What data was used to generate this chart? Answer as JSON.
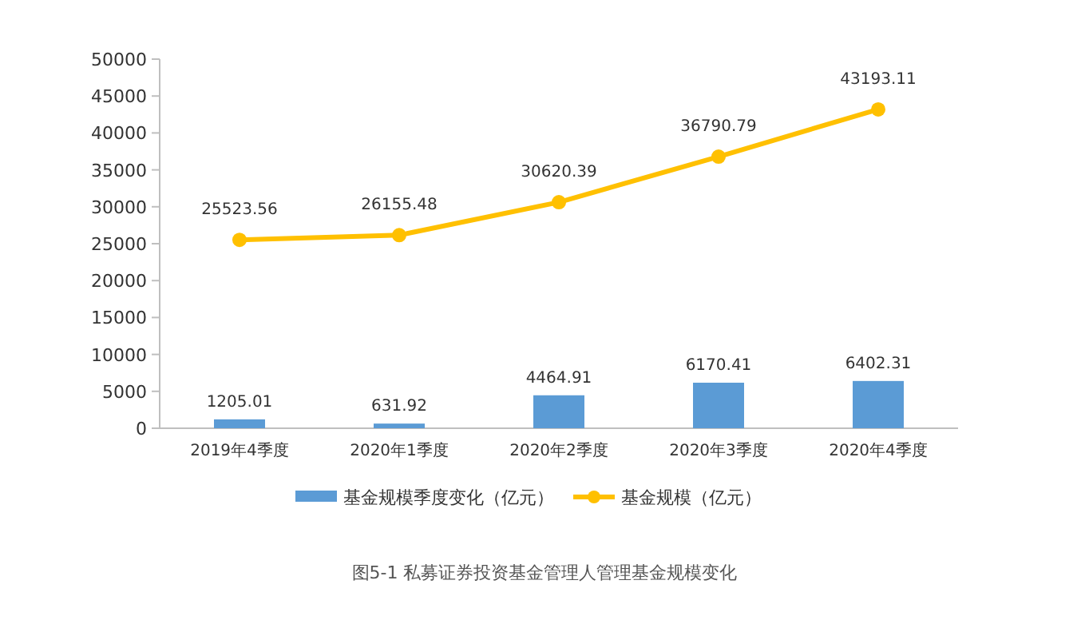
{
  "chart_data": {
    "type": "bar",
    "title": "图5-1  私募证券投资基金管理人管理基金规模变化",
    "categories": [
      "2019年4季度",
      "2020年1季度",
      "2020年2季度",
      "2020年3季度",
      "2020年4季度"
    ],
    "series": [
      {
        "name": "基金规模季度变化（亿元）",
        "color": "#5b9bd5",
        "values": [
          1205.01,
          631.92,
          4464.91,
          6170.41,
          6402.31
        ]
      },
      {
        "name": "基金规模（亿元）",
        "type": "line",
        "color": "#ffc000",
        "values": [
          25523.56,
          26155.48,
          30620.39,
          36790.79,
          43193.11
        ]
      }
    ],
    "ylim": [
      0,
      50000
    ],
    "yticks": [
      0,
      5000,
      10000,
      15000,
      20000,
      25000,
      30000,
      35000,
      40000,
      45000,
      50000
    ],
    "data_labels": true,
    "legend": "bottom",
    "marker": "circle",
    "grid": false
  }
}
